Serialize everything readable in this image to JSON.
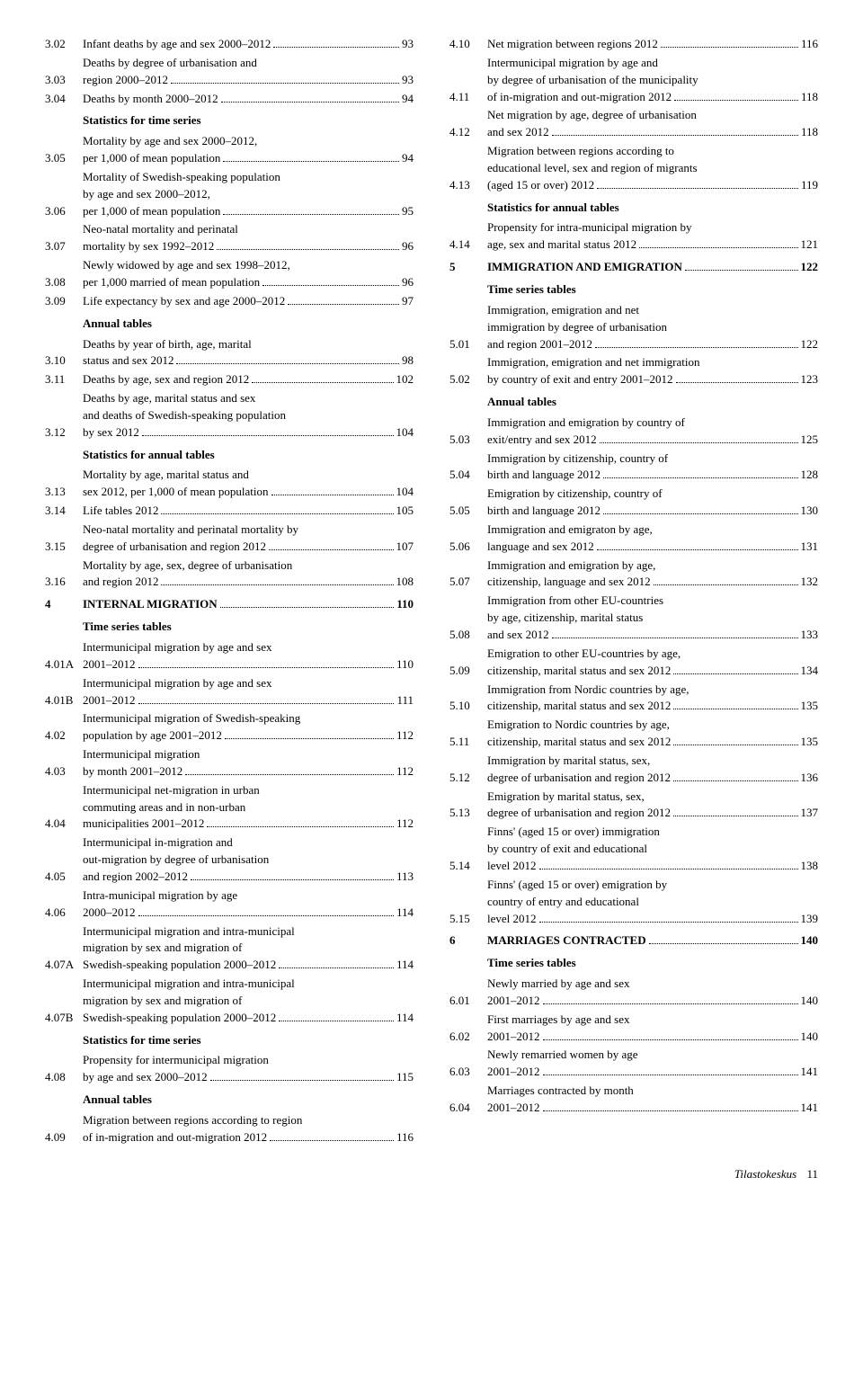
{
  "footer": {
    "source": "Tilastokeskus",
    "page": "11"
  },
  "left": [
    {
      "type": "e",
      "n": "3.02",
      "lines": [
        {
          "t": "Infant deaths by age and sex 2000–2012",
          "p": "93"
        }
      ]
    },
    {
      "type": "e",
      "n": "3.03",
      "lines": [
        {
          "t": "Deaths by degree of urbanisation and"
        },
        {
          "t": "region 2000–2012",
          "p": "93"
        }
      ]
    },
    {
      "type": "e",
      "n": "3.04",
      "lines": [
        {
          "t": "Deaths by month 2000–2012",
          "p": "94"
        }
      ]
    },
    {
      "type": "h",
      "t": "Statistics for time series"
    },
    {
      "type": "e",
      "n": "3.05",
      "lines": [
        {
          "t": "Mortality by age and sex 2000–2012,"
        },
        {
          "t": "per 1,000 of mean population",
          "p": "94"
        }
      ]
    },
    {
      "type": "e",
      "n": "3.06",
      "lines": [
        {
          "t": "Mortality of Swedish-speaking population"
        },
        {
          "t": "by age and sex 2000–2012,"
        },
        {
          "t": "per 1,000 of mean population",
          "p": "95"
        }
      ]
    },
    {
      "type": "e",
      "n": "3.07",
      "lines": [
        {
          "t": "Neo-natal mortality and perinatal"
        },
        {
          "t": "mortality by sex 1992–2012",
          "p": "96"
        }
      ]
    },
    {
      "type": "e",
      "n": "3.08",
      "lines": [
        {
          "t": "Newly widowed by age and sex 1998–2012,"
        },
        {
          "t": "per 1,000 married of mean population",
          "p": "96"
        }
      ]
    },
    {
      "type": "e",
      "n": "3.09",
      "lines": [
        {
          "t": "Life expectancy by sex and age 2000–2012",
          "p": "97"
        }
      ]
    },
    {
      "type": "h",
      "t": "Annual tables"
    },
    {
      "type": "e",
      "n": "3.10",
      "lines": [
        {
          "t": "Deaths by year of birth, age, marital"
        },
        {
          "t": "status and sex 2012",
          "p": "98"
        }
      ]
    },
    {
      "type": "e",
      "n": "3.11",
      "lines": [
        {
          "t": "Deaths by age, sex and region 2012",
          "p": "102"
        }
      ]
    },
    {
      "type": "e",
      "n": "3.12",
      "lines": [
        {
          "t": "Deaths by age, marital status and sex"
        },
        {
          "t": "and deaths of Swedish-speaking population"
        },
        {
          "t": "by sex 2012",
          "p": "104"
        }
      ]
    },
    {
      "type": "h",
      "t": "Statistics for annual tables"
    },
    {
      "type": "e",
      "n": "3.13",
      "lines": [
        {
          "t": "Mortality by age, marital status and"
        },
        {
          "t": "sex 2012, per 1,000 of mean population",
          "p": "104"
        }
      ]
    },
    {
      "type": "e",
      "n": "3.14",
      "lines": [
        {
          "t": "Life tables 2012",
          "p": "105"
        }
      ]
    },
    {
      "type": "e",
      "n": "3.15",
      "lines": [
        {
          "t": "Neo-natal mortality and perinatal mortality by"
        },
        {
          "t": "degree of urbanisation and region 2012",
          "p": "107"
        }
      ]
    },
    {
      "type": "e",
      "n": "3.16",
      "lines": [
        {
          "t": "Mortality by age, sex, degree of urbanisation"
        },
        {
          "t": "and region 2012",
          "p": "108"
        }
      ]
    },
    {
      "type": "s",
      "n": "4",
      "t": "INTERNAL MIGRATION",
      "p": "110"
    },
    {
      "type": "h",
      "t": "Time series tables"
    },
    {
      "type": "e",
      "n": "4.01A",
      "lines": [
        {
          "t": "Intermunicipal migration by age and sex"
        },
        {
          "t": "2001–2012",
          "p": "110"
        }
      ]
    },
    {
      "type": "e",
      "n": "4.01B",
      "lines": [
        {
          "t": "Intermunicipal migration by age and sex"
        },
        {
          "t": "2001–2012",
          "p": "111"
        }
      ]
    },
    {
      "type": "e",
      "n": "4.02",
      "lines": [
        {
          "t": "Intermunicipal migration of Swedish-speaking"
        },
        {
          "t": "population by age 2001–2012",
          "p": "112"
        }
      ]
    },
    {
      "type": "e",
      "n": "4.03",
      "lines": [
        {
          "t": "Intermunicipal migration"
        },
        {
          "t": "by month 2001–2012",
          "p": "112"
        }
      ]
    },
    {
      "type": "e",
      "n": "4.04",
      "lines": [
        {
          "t": "Intermunicipal net-migration in urban"
        },
        {
          "t": "commuting areas and in non-urban"
        },
        {
          "t": "municipalities 2001–2012",
          "p": "112"
        }
      ]
    },
    {
      "type": "e",
      "n": "4.05",
      "lines": [
        {
          "t": "Intermunicipal in-migration and"
        },
        {
          "t": "out-migration by degree of urbanisation"
        },
        {
          "t": "and region 2002–2012",
          "p": "113"
        }
      ]
    },
    {
      "type": "e",
      "n": "4.06",
      "lines": [
        {
          "t": "Intra-municipal migration by age"
        },
        {
          "t": "2000–2012",
          "p": "114"
        }
      ]
    },
    {
      "type": "e",
      "n": "4.07A",
      "lines": [
        {
          "t": "Intermunicipal migration and intra-municipal"
        },
        {
          "t": "migration by sex and migration of"
        },
        {
          "t": "Swedish-speaking population 2000–2012",
          "p": "114"
        }
      ]
    },
    {
      "type": "e",
      "n": "4.07B",
      "lines": [
        {
          "t": "Intermunicipal migration and intra-municipal"
        },
        {
          "t": "migration by sex and migration of"
        },
        {
          "t": "Swedish-speaking population 2000–2012",
          "p": "114"
        }
      ]
    },
    {
      "type": "h",
      "t": "Statistics for time series"
    },
    {
      "type": "e",
      "n": "4.08",
      "lines": [
        {
          "t": "Propensity for intermunicipal migration"
        },
        {
          "t": "by age and sex 2000–2012",
          "p": "115"
        }
      ]
    },
    {
      "type": "h",
      "t": "Annual tables"
    },
    {
      "type": "e",
      "n": "4.09",
      "lines": [
        {
          "t": "Migration between regions according to region"
        },
        {
          "t": "of in-migration and out-migration 2012",
          "p": "116"
        }
      ]
    }
  ],
  "right": [
    {
      "type": "e",
      "n": "4.10",
      "lines": [
        {
          "t": "Net migration between regions 2012",
          "p": "116"
        }
      ]
    },
    {
      "type": "e",
      "n": "4.11",
      "lines": [
        {
          "t": "Intermunicipal migration by age and"
        },
        {
          "t": "by degree of urbanisation of the municipality"
        },
        {
          "t": "of in-migration and out-migration 2012",
          "p": "118"
        }
      ]
    },
    {
      "type": "e",
      "n": "4.12",
      "lines": [
        {
          "t": "Net migration by age, degree of urbanisation"
        },
        {
          "t": "and sex 2012",
          "p": "118"
        }
      ]
    },
    {
      "type": "e",
      "n": "4.13",
      "lines": [
        {
          "t": "Migration between regions according to"
        },
        {
          "t": "educational level, sex and region of migrants"
        },
        {
          "t": "(aged 15 or over) 2012",
          "p": "119"
        }
      ]
    },
    {
      "type": "h",
      "t": "Statistics for annual tables"
    },
    {
      "type": "e",
      "n": "4.14",
      "lines": [
        {
          "t": "Propensity for intra-municipal migration by"
        },
        {
          "t": "age, sex and marital status 2012",
          "p": "121"
        }
      ]
    },
    {
      "type": "s",
      "n": "5",
      "t": "IMMIGRATION AND EMIGRATION",
      "p": "122"
    },
    {
      "type": "h",
      "t": "Time series tables"
    },
    {
      "type": "e",
      "n": "5.01",
      "lines": [
        {
          "t": "Immigration, emigration and net"
        },
        {
          "t": "immigration by degree of urbanisation"
        },
        {
          "t": "and region 2001–2012",
          "p": "122"
        }
      ]
    },
    {
      "type": "e",
      "n": "5.02",
      "lines": [
        {
          "t": "Immigration, emigration and net immigration"
        },
        {
          "t": "by country of exit and entry 2001–2012",
          "p": "123"
        }
      ]
    },
    {
      "type": "h",
      "t": "Annual tables"
    },
    {
      "type": "e",
      "n": "5.03",
      "lines": [
        {
          "t": "Immigration and emigration by country of"
        },
        {
          "t": "exit/entry and sex 2012",
          "p": "125"
        }
      ]
    },
    {
      "type": "e",
      "n": "5.04",
      "lines": [
        {
          "t": "Immigration by citizenship, country of"
        },
        {
          "t": "birth and language 2012",
          "p": "128"
        }
      ]
    },
    {
      "type": "e",
      "n": "5.05",
      "lines": [
        {
          "t": "Emigration by citizenship, country of"
        },
        {
          "t": "birth and language 2012",
          "p": "130"
        }
      ]
    },
    {
      "type": "e",
      "n": "5.06",
      "lines": [
        {
          "t": "Immigration and emigraton by age,"
        },
        {
          "t": "language and sex 2012",
          "p": "131"
        }
      ]
    },
    {
      "type": "e",
      "n": "5.07",
      "lines": [
        {
          "t": "Immigration and emigration by age,"
        },
        {
          "t": "citizenship, language and sex 2012",
          "p": "132"
        }
      ]
    },
    {
      "type": "e",
      "n": "5.08",
      "lines": [
        {
          "t": "Immigration from other EU-countries"
        },
        {
          "t": "by age, citizenship, marital status"
        },
        {
          "t": "and sex 2012",
          "p": "133"
        }
      ]
    },
    {
      "type": "e",
      "n": "5.09",
      "lines": [
        {
          "t": "Emigration to other EU-countries by age,"
        },
        {
          "t": "citizenship, marital status and sex 2012",
          "p": "134"
        }
      ]
    },
    {
      "type": "e",
      "n": "5.10",
      "lines": [
        {
          "t": "Immigration from Nordic countries by age,"
        },
        {
          "t": "citizenship, marital status and sex 2012",
          "p": "135"
        }
      ]
    },
    {
      "type": "e",
      "n": "5.11",
      "lines": [
        {
          "t": "Emigration to Nordic countries by age,"
        },
        {
          "t": "citizenship, marital status and sex 2012",
          "p": "135"
        }
      ]
    },
    {
      "type": "e",
      "n": "5.12",
      "lines": [
        {
          "t": "Immigration by marital status, sex,"
        },
        {
          "t": "degree of urbanisation and region 2012",
          "p": "136"
        }
      ]
    },
    {
      "type": "e",
      "n": "5.13",
      "lines": [
        {
          "t": "Emigration by marital status, sex,"
        },
        {
          "t": "degree of urbanisation and region 2012",
          "p": "137"
        }
      ]
    },
    {
      "type": "e",
      "n": "5.14",
      "lines": [
        {
          "t": "Finns' (aged 15 or over) immigration"
        },
        {
          "t": "by country of exit and educational"
        },
        {
          "t": "level 2012",
          "p": "138"
        }
      ]
    },
    {
      "type": "e",
      "n": "5.15",
      "lines": [
        {
          "t": "Finns' (aged 15 or over) emigration by"
        },
        {
          "t": "country of entry and educational"
        },
        {
          "t": "level 2012",
          "p": "139"
        }
      ]
    },
    {
      "type": "s",
      "n": "6",
      "t": "MARRIAGES CONTRACTED",
      "p": "140"
    },
    {
      "type": "h",
      "t": "Time series tables"
    },
    {
      "type": "e",
      "n": "6.01",
      "lines": [
        {
          "t": "Newly married by age and sex"
        },
        {
          "t": "2001–2012",
          "p": "140"
        }
      ]
    },
    {
      "type": "e",
      "n": "6.02",
      "lines": [
        {
          "t": "First marriages by age and sex"
        },
        {
          "t": "2001–2012",
          "p": "140"
        }
      ]
    },
    {
      "type": "e",
      "n": "6.03",
      "lines": [
        {
          "t": "Newly remarried women by age"
        },
        {
          "t": "2001–2012",
          "p": "141"
        }
      ]
    },
    {
      "type": "e",
      "n": "6.04",
      "lines": [
        {
          "t": "Marriages contracted by month"
        },
        {
          "t": "2001–2012",
          "p": "141"
        }
      ]
    }
  ]
}
